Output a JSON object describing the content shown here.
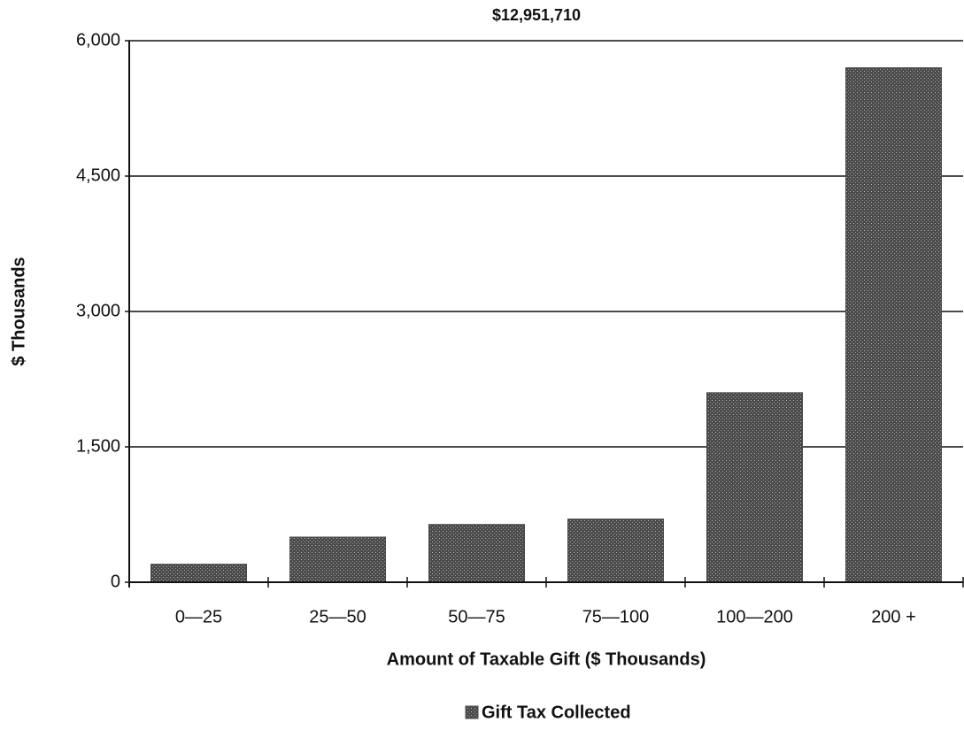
{
  "chart_data": {
    "type": "bar",
    "title": "$12,951,710",
    "y_label": "$ Thousands",
    "x_label": "Amount of Taxable Gift ($ Thousands)",
    "categories": [
      "0—25",
      "25—50",
      "50—75",
      "75—100",
      "100—200",
      "200 +"
    ],
    "series": [
      {
        "name": "Gift Tax Collected",
        "color": "#4a4a4a",
        "values": [
          200,
          500,
          640,
          700,
          2100,
          5700
        ]
      }
    ],
    "ylim": [
      0,
      6000
    ],
    "yticks": [
      0,
      {
        "value": 1500,
        "label": "1,500"
      },
      {
        "value": 3000,
        "label": "3,000"
      },
      {
        "value": 4500,
        "label": "4,500"
      },
      {
        "value": 6000,
        "label": "6,000"
      }
    ],
    "grid": true,
    "legend": "bottom"
  }
}
